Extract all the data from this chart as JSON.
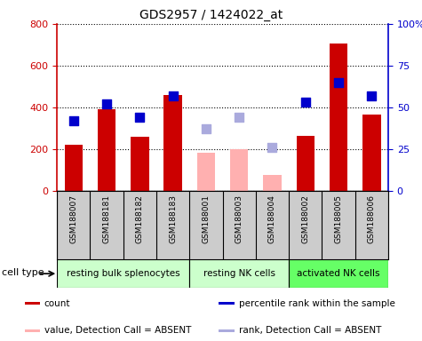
{
  "title": "GDS2957 / 1424022_at",
  "samples": [
    "GSM188007",
    "GSM188181",
    "GSM188182",
    "GSM188183",
    "GSM188001",
    "GSM188003",
    "GSM188004",
    "GSM188002",
    "GSM188005",
    "GSM188006"
  ],
  "bar_values": [
    220,
    390,
    260,
    460,
    null,
    null,
    null,
    265,
    705,
    365
  ],
  "bar_absent": [
    null,
    null,
    null,
    null,
    185,
    200,
    75,
    null,
    null,
    null
  ],
  "bar_color_present": "#cc0000",
  "bar_color_absent": "#ffb0b0",
  "dot_values": [
    42,
    52,
    44,
    57,
    null,
    null,
    null,
    53,
    65,
    57
  ],
  "dot_absent": [
    null,
    null,
    null,
    null,
    37,
    44,
    26,
    null,
    null,
    null
  ],
  "dot_color_present": "#0000cc",
  "dot_color_absent": "#aaaadd",
  "ylim_left": [
    0,
    800
  ],
  "ylim_right": [
    0,
    100
  ],
  "yticks_left": [
    0,
    200,
    400,
    600,
    800
  ],
  "yticks_right": [
    0,
    25,
    50,
    75,
    100
  ],
  "yticklabels_right": [
    "0",
    "25",
    "50",
    "75",
    "100%"
  ],
  "dot_size": 60,
  "group_defs": [
    {
      "start": 0,
      "end": 3,
      "label": "resting bulk splenocytes",
      "color": "#ccffcc"
    },
    {
      "start": 4,
      "end": 6,
      "label": "resting NK cells",
      "color": "#ccffcc"
    },
    {
      "start": 7,
      "end": 9,
      "label": "activated NK cells",
      "color": "#66ff66"
    }
  ],
  "legend_items": [
    {
      "label": "count",
      "color": "#cc0000"
    },
    {
      "label": "percentile rank within the sample",
      "color": "#0000cc"
    },
    {
      "label": "value, Detection Call = ABSENT",
      "color": "#ffb0b0"
    },
    {
      "label": "rank, Detection Call = ABSENT",
      "color": "#aaaadd"
    }
  ],
  "sample_bg": "#cccccc",
  "plot_bg": "#ffffff",
  "bar_width": 0.55
}
